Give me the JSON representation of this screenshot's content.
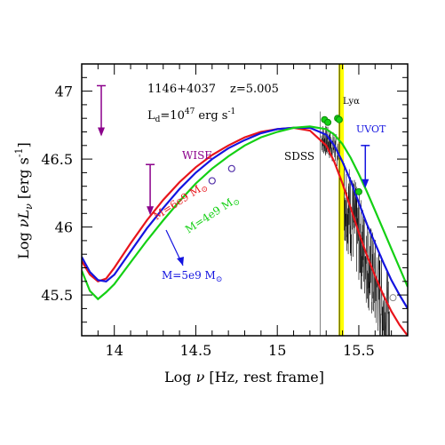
{
  "chart_data": {
    "type": "line",
    "xlabel_main": "Log ",
    "xlabel_nu": "ν",
    "xlabel_rest": " [Hz, rest frame]",
    "ylabel_main": "Log ",
    "ylabel_nuL": "νL",
    "ylabel_sub": "ν",
    "ylabel_rest": " [erg s",
    "ylabel_exp": "-1",
    "ylabel_end": "]",
    "xlim": [
      13.8,
      15.8
    ],
    "ylim": [
      45.2,
      47.2
    ],
    "xticks": [
      14,
      14.5,
      15,
      15.5
    ],
    "xtick_labels": [
      "14",
      "14.5",
      "15",
      "15.5"
    ],
    "yticks": [
      45.5,
      46,
      46.5,
      47
    ],
    "ytick_labels": [
      "45.5",
      "46",
      "46.5",
      "47"
    ],
    "annotations": {
      "object": "1146+4037",
      "redshift": "z=5.005",
      "ld_prefix": "L",
      "ld_sub": "d",
      "ld_mid": "=10",
      "ld_exp": "47",
      "ld_suffix": " erg s",
      "ld_exp2": "-1",
      "wise": "WISE",
      "sdss": "SDSS",
      "uvot": "UVOT",
      "lya": "Lyα",
      "m_red": "M=6e9 M",
      "m_green": "M=4e9 M",
      "m_blue": "M=5e9 M",
      "sun": "⊙"
    },
    "series": [
      {
        "color": "#e8141b",
        "x": [
          13.8,
          13.85,
          13.9,
          13.95,
          14.0,
          14.1,
          14.2,
          14.3,
          14.4,
          14.5,
          14.6,
          14.7,
          14.8,
          14.9,
          15.0,
          15.1,
          15.2,
          15.3,
          15.35,
          15.4,
          15.45,
          15.5,
          15.55,
          15.6,
          15.65,
          15.7,
          15.75,
          15.8
        ],
        "y": [
          45.75,
          45.65,
          45.6,
          45.62,
          45.7,
          45.88,
          46.05,
          46.2,
          46.33,
          46.44,
          46.53,
          46.6,
          46.66,
          46.7,
          46.72,
          46.73,
          46.71,
          46.6,
          46.48,
          46.32,
          46.14,
          45.96,
          45.79,
          45.64,
          45.5,
          45.38,
          45.28,
          45.2
        ]
      },
      {
        "color": "#1414e0",
        "x": [
          13.8,
          13.85,
          13.9,
          13.95,
          14.0,
          14.1,
          14.2,
          14.3,
          14.4,
          14.5,
          14.6,
          14.7,
          14.8,
          14.9,
          15.0,
          15.1,
          15.2,
          15.3,
          15.35,
          15.4,
          15.45,
          15.5,
          15.55,
          15.6,
          15.65,
          15.7,
          15.75,
          15.8
        ],
        "y": [
          45.78,
          45.67,
          45.61,
          45.6,
          45.65,
          45.82,
          45.99,
          46.14,
          46.28,
          46.4,
          46.5,
          46.58,
          46.64,
          46.69,
          46.72,
          46.73,
          46.73,
          46.68,
          46.6,
          46.48,
          46.34,
          46.18,
          46.02,
          45.88,
          45.74,
          45.61,
          45.5,
          45.4
        ]
      },
      {
        "color": "#14d014",
        "x": [
          13.8,
          13.85,
          13.9,
          13.95,
          14.0,
          14.1,
          14.2,
          14.3,
          14.4,
          14.5,
          14.6,
          14.7,
          14.8,
          14.9,
          15.0,
          15.1,
          15.2,
          15.3,
          15.35,
          15.4,
          15.45,
          15.5,
          15.55,
          15.6,
          15.65,
          15.7,
          15.75,
          15.8
        ],
        "y": [
          45.68,
          45.53,
          45.47,
          45.52,
          45.58,
          45.74,
          45.9,
          46.05,
          46.19,
          46.32,
          46.43,
          46.52,
          46.6,
          46.66,
          46.7,
          46.73,
          46.74,
          46.72,
          46.68,
          46.61,
          46.51,
          46.39,
          46.26,
          46.12,
          45.98,
          45.84,
          45.7,
          45.56
        ]
      }
    ],
    "wise_points": [
      {
        "x": 14.6,
        "y": 46.34
      },
      {
        "x": 14.72,
        "y": 46.43
      }
    ],
    "upper_limits": [
      {
        "x": 13.92,
        "y": 47.04,
        "len": 0.36
      },
      {
        "x": 14.22,
        "y": 46.46,
        "len": 0.36
      }
    ],
    "uvot_limit": {
      "x": 15.54,
      "y": 46.6,
      "len": 0.3
    },
    "green_points": [
      {
        "x": 15.29,
        "y": 46.79
      },
      {
        "x": 15.31,
        "y": 46.77
      },
      {
        "x": 15.37,
        "y": 46.8
      },
      {
        "x": 15.38,
        "y": 46.79
      },
      {
        "x": 15.5,
        "y": 46.26
      }
    ],
    "gray_point": {
      "x": 15.71,
      "y": 45.48
    },
    "lya_x": 15.392
  }
}
